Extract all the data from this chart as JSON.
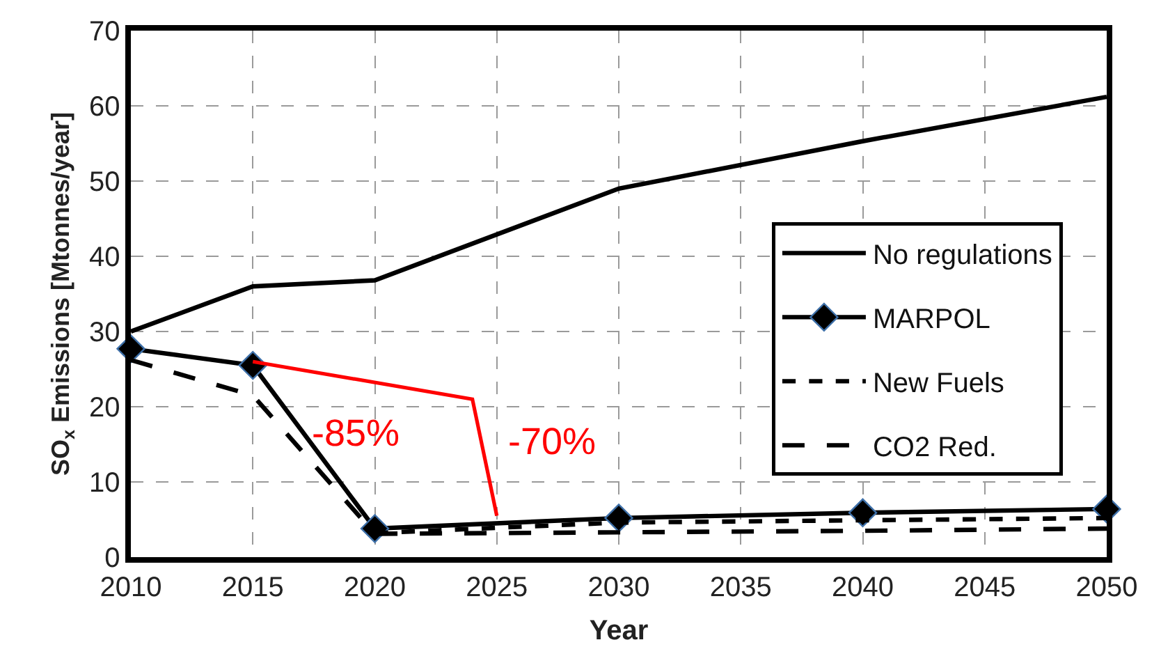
{
  "chart_data": {
    "type": "line",
    "xlabel": "Year",
    "ylabel": "SO$_{x}$ Emissions [Mtonnes/year]",
    "x": [
      2010,
      2015,
      2020,
      2030,
      2040,
      2050
    ],
    "xlim": [
      2010,
      2050
    ],
    "xticks": [
      2010,
      2015,
      2020,
      2025,
      2030,
      2035,
      2040,
      2045,
      2050
    ],
    "ylim": [
      0,
      70
    ],
    "yticks": [
      0,
      10,
      20,
      30,
      40,
      50,
      60,
      70
    ],
    "grid": true,
    "legend": "right",
    "series": [
      {
        "name": "No regulations",
        "color": "#000000",
        "values": [
          30,
          36,
          36.8,
          49,
          55.3,
          61.2
        ],
        "marker": "none",
        "line_style": "solid"
      },
      {
        "name": "MARPOL",
        "color": "#000000",
        "values": [
          27.7,
          25.5,
          3.8,
          5.2,
          5.9,
          6.4
        ],
        "marker": "diamond",
        "line_style": "solid"
      },
      {
        "name": "New Fuels",
        "color": "#000000",
        "values": [
          null,
          null,
          3.2,
          4.6,
          4.9,
          5.2
        ],
        "marker": "none",
        "line_style": "dashed"
      },
      {
        "name": "CO2 Red.",
        "color": "#000000",
        "values": [
          26.2,
          21.5,
          3.1,
          3.3,
          3.5,
          3.8
        ],
        "marker": "none",
        "line_style": "longdash"
      },
      {
        "color": "#ff0000",
        "x": [
          2015,
          2024,
          2025
        ],
        "values": [
          26,
          21,
          5.5
        ],
        "marker": "none",
        "line_style": "solid"
      }
    ],
    "annotations": [
      "-85%",
      "-70%"
    ]
  }
}
